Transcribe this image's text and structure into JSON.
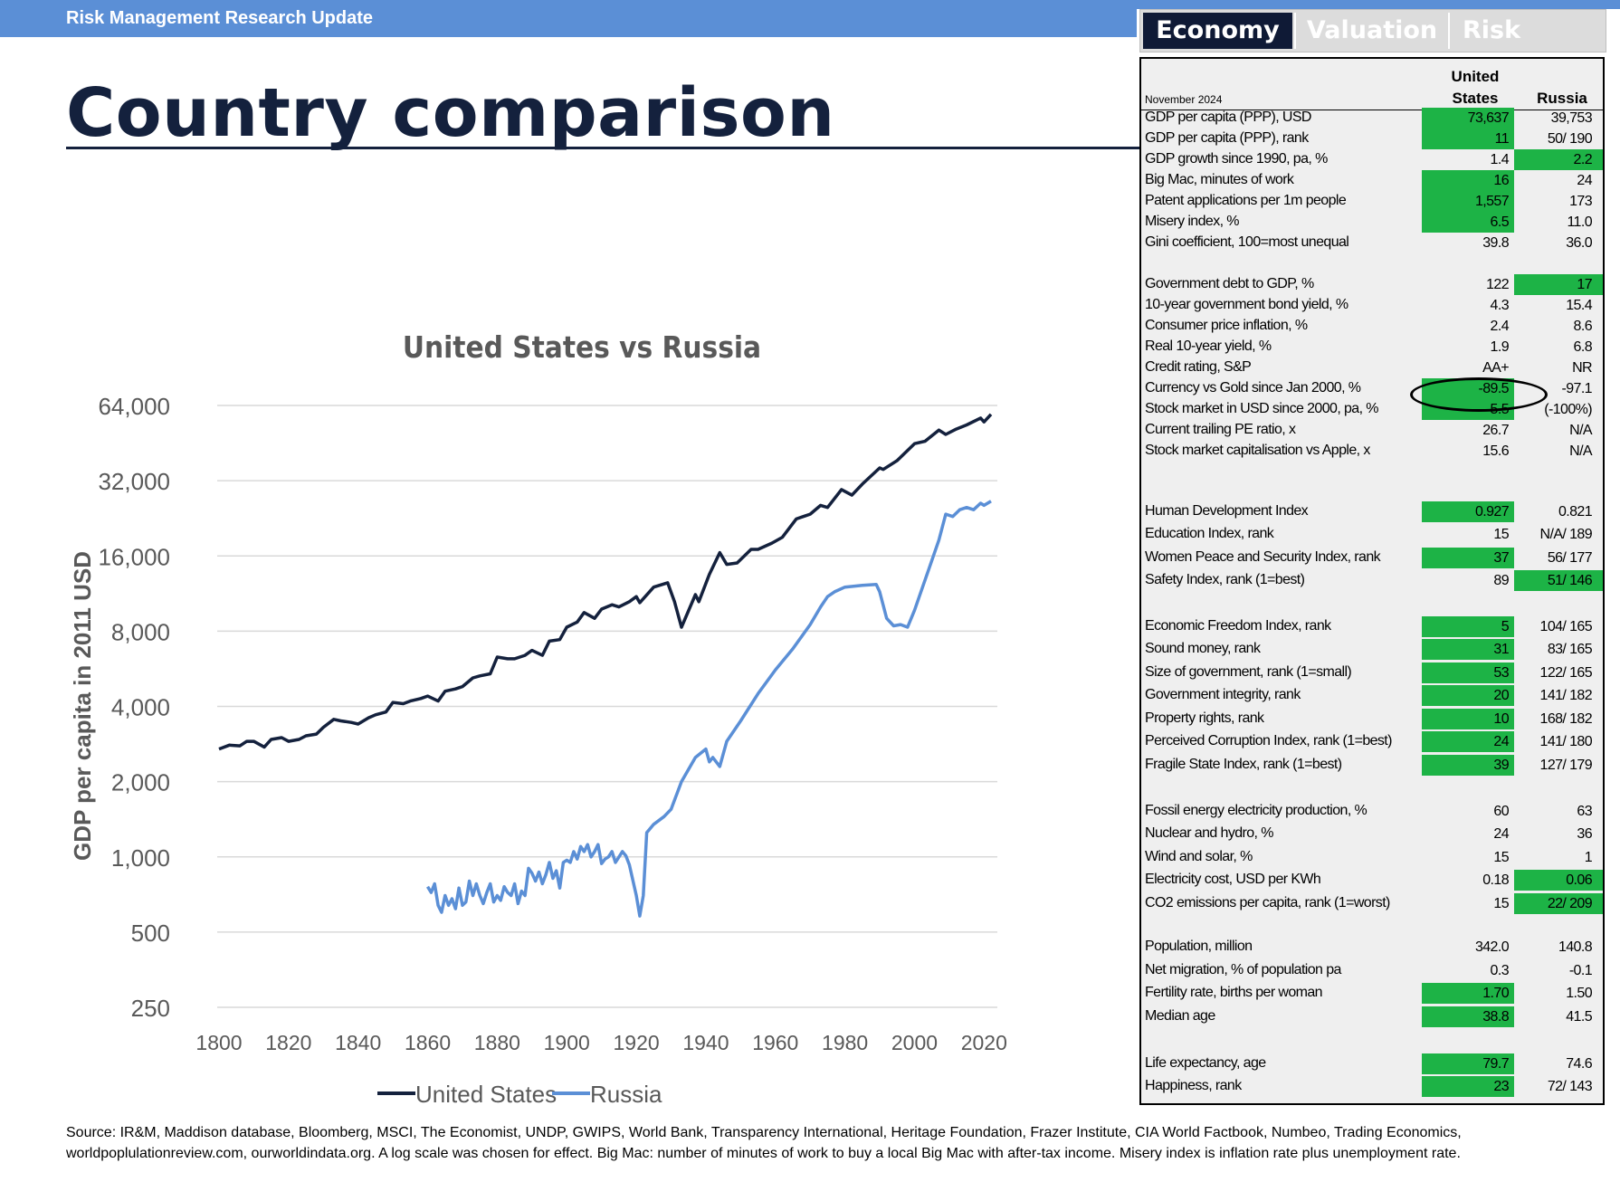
{
  "header": {
    "banner": "Risk Management Research Update",
    "title": "Country comparison"
  },
  "tabs": [
    {
      "label": "Economy",
      "active": true
    },
    {
      "label": "Valuation",
      "active": false
    },
    {
      "label": "Risk",
      "active": false
    }
  ],
  "table": {
    "date": "November 2024",
    "columns": {
      "us_line1": "United",
      "us_line2": "States",
      "ru": "Russia"
    },
    "rows": [
      {
        "label": "GDP per capita (PPP), USD",
        "us": "73,637",
        "ru": "39,753",
        "hl": "us",
        "top": 54
      },
      {
        "label": "GDP per capita (PPP), rank",
        "us": "11",
        "ru": "50/ 190",
        "hl": "us",
        "top": 77
      },
      {
        "label": "GDP growth since 1990, pa, %",
        "us": "1.4",
        "ru": "2.2",
        "hl": "ru",
        "top": 100
      },
      {
        "label": "Big Mac, minutes of work",
        "us": "16",
        "ru": "24",
        "hl": "us",
        "top": 123
      },
      {
        "label": "Patent applications per 1m people",
        "us": "1,557",
        "ru": "173",
        "hl": "us",
        "top": 146
      },
      {
        "label": "Misery index, %",
        "us": "6.5",
        "ru": "11.0",
        "hl": "us",
        "top": 169
      },
      {
        "label": "Gini coefficient, 100=most unequal",
        "us": "39.8",
        "ru": "36.0",
        "hl": "",
        "top": 192
      },
      {
        "label": "Government debt to GDP, %",
        "us": "122",
        "ru": "17",
        "hl": "ru",
        "top": 238
      },
      {
        "label": "10-year government bond yield, %",
        "us": "4.3",
        "ru": "15.4",
        "hl": "",
        "top": 261
      },
      {
        "label": "Consumer price inflation, %",
        "us": "2.4",
        "ru": "8.6",
        "hl": "",
        "top": 284
      },
      {
        "label": "Real 10-year yield, %",
        "us": "1.9",
        "ru": "6.8",
        "hl": "",
        "top": 307
      },
      {
        "label": "Credit rating, S&P",
        "us": "AA+",
        "ru": "NR",
        "hl": "",
        "top": 330
      },
      {
        "label": "Currency vs Gold since Jan 2000, %",
        "us": "-89.5",
        "ru": "-97.1",
        "hl": "us",
        "top": 353
      },
      {
        "label": "Stock market in USD since 2000, pa, %",
        "us": "5.5",
        "ru": "(-100%)",
        "hl": "us",
        "top": 376
      },
      {
        "label": "Current trailing PE ratio, x",
        "us": "26.7",
        "ru": "N/A",
        "hl": "",
        "top": 399
      },
      {
        "label": "Stock market capitalisation vs Apple, x",
        "us": "15.6",
        "ru": "N/A",
        "hl": "",
        "top": 422
      },
      {
        "label": "Human Development Index",
        "us": "0.927",
        "ru": "0.821",
        "hl": "us",
        "top": 489
      },
      {
        "label": "Education Index, rank",
        "us": "15",
        "ru": "N/A/ 189",
        "hl": "",
        "top": 514
      },
      {
        "label": "Women Peace and Security Index, rank",
        "us": "37",
        "ru": "56/ 177",
        "hl": "us",
        "top": 540
      },
      {
        "label": "Safety Index, rank (1=best)",
        "us": "89",
        "ru": "51/ 146",
        "hl": "ru",
        "top": 565
      },
      {
        "label": "Economic Freedom Index, rank",
        "us": "5",
        "ru": "104/ 165",
        "hl": "us",
        "top": 616
      },
      {
        "label": "Sound money, rank",
        "us": "31",
        "ru": "83/ 165",
        "hl": "us",
        "top": 641
      },
      {
        "label": "Size of government, rank (1=small)",
        "us": "53",
        "ru": "122/ 165",
        "hl": "us",
        "top": 667
      },
      {
        "label": "Government integrity, rank",
        "us": "20",
        "ru": "141/ 182",
        "hl": "us",
        "top": 692
      },
      {
        "label": "Property rights, rank",
        "us": "10",
        "ru": "168/ 182",
        "hl": "us",
        "top": 718
      },
      {
        "label": "Perceived Corruption Index, rank (1=best)",
        "us": "24",
        "ru": "141/ 180",
        "hl": "us",
        "top": 743
      },
      {
        "label": "Fragile State Index, rank (1=best)",
        "us": "39",
        "ru": "127/ 179",
        "hl": "us",
        "top": 769
      },
      {
        "label": "Fossil energy electricity production, %",
        "us": "60",
        "ru": "63",
        "hl": "",
        "top": 820
      },
      {
        "label": "Nuclear and hydro, %",
        "us": "24",
        "ru": "36",
        "hl": "",
        "top": 845
      },
      {
        "label": "Wind and solar, %",
        "us": "15",
        "ru": "1",
        "hl": "",
        "top": 871
      },
      {
        "label": "Electricity cost, USD per KWh",
        "us": "0.18",
        "ru": "0.06",
        "hl": "ru",
        "top": 896
      },
      {
        "label": "CO2 emissions per capita, rank (1=worst)",
        "us": "15",
        "ru": "22/ 209",
        "hl": "ru",
        "top": 922
      },
      {
        "label": "Population, million",
        "us": "342.0",
        "ru": "140.8",
        "hl": "",
        "top": 970
      },
      {
        "label": "Net migration, % of population pa",
        "us": "0.3",
        "ru": "-0.1",
        "hl": "",
        "top": 996
      },
      {
        "label": "Fertility rate, births per woman",
        "us": "1.70",
        "ru": "1.50",
        "hl": "us",
        "top": 1021
      },
      {
        "label": "Median age",
        "us": "38.8",
        "ru": "41.5",
        "hl": "us",
        "top": 1047
      },
      {
        "label": "Life expectancy, age",
        "us": "79.7",
        "ru": "74.6",
        "hl": "us",
        "top": 1099
      },
      {
        "label": "Happiness, rank",
        "us": "23",
        "ru": "72/ 143",
        "hl": "us",
        "top": 1124
      }
    ]
  },
  "colors": {
    "us_line": "#14213d",
    "ru_line": "#5b8fd6",
    "highlight": "#1db346"
  },
  "chart_data": {
    "type": "line",
    "title": "United States vs Russia",
    "ylabel": "GDP per capita in 2011 USD",
    "xlabel": "",
    "y_scale": "log2",
    "ylim": [
      250,
      64000
    ],
    "xlim": [
      1800,
      2022
    ],
    "x_ticks": [
      1800,
      1820,
      1840,
      1860,
      1880,
      1900,
      1920,
      1940,
      1960,
      1980,
      2000,
      2020
    ],
    "y_ticks": [
      250,
      500,
      1000,
      2000,
      4000,
      8000,
      16000,
      32000,
      64000
    ],
    "y_tick_labels": [
      "250",
      "500",
      "1,000",
      "2,000",
      "4,000",
      "8,000",
      "16,000",
      "32,000",
      "64,000"
    ],
    "legend_position": "bottom",
    "grid": true,
    "series": [
      {
        "name": "United States",
        "x": [
          1800,
          1803,
          1806,
          1808,
          1810,
          1813,
          1815,
          1818,
          1820,
          1823,
          1825,
          1828,
          1830,
          1833,
          1835,
          1838,
          1840,
          1843,
          1845,
          1848,
          1850,
          1853,
          1855,
          1858,
          1860,
          1863,
          1865,
          1868,
          1870,
          1873,
          1875,
          1878,
          1880,
          1883,
          1885,
          1888,
          1890,
          1893,
          1895,
          1898,
          1900,
          1903,
          1905,
          1908,
          1910,
          1913,
          1915,
          1918,
          1920,
          1921,
          1925,
          1929,
          1931,
          1933,
          1937,
          1938,
          1941,
          1944,
          1946,
          1949,
          1953,
          1955,
          1959,
          1962,
          1966,
          1970,
          1973,
          1975,
          1979,
          1982,
          1985,
          1990,
          1991,
          1995,
          2000,
          2003,
          2007,
          2009,
          2012,
          2015,
          2019,
          2020,
          2022
        ],
        "values": [
          2700,
          2800,
          2780,
          2900,
          2900,
          2750,
          2950,
          3000,
          2900,
          2950,
          3050,
          3100,
          3300,
          3550,
          3500,
          3450,
          3400,
          3600,
          3700,
          3800,
          4150,
          4100,
          4200,
          4300,
          4400,
          4200,
          4600,
          4700,
          4800,
          5200,
          5300,
          5400,
          6300,
          6200,
          6200,
          6400,
          6700,
          6400,
          7300,
          7400,
          8300,
          8700,
          9500,
          9000,
          9800,
          10200,
          10000,
          10500,
          11000,
          10400,
          12000,
          12500,
          10500,
          8300,
          11200,
          10500,
          13500,
          16500,
          14800,
          15000,
          17000,
          17000,
          18000,
          19000,
          22500,
          23500,
          25500,
          25000,
          29500,
          28000,
          31000,
          36000,
          35500,
          38500,
          45000,
          46000,
          51000,
          49000,
          51500,
          53500,
          57000,
          55000,
          59000
        ]
      },
      {
        "name": "Russia",
        "x": [
          1860,
          1861,
          1862,
          1863,
          1864,
          1865,
          1866,
          1867,
          1868,
          1869,
          1870,
          1871,
          1872,
          1873,
          1874,
          1875,
          1876,
          1877,
          1878,
          1879,
          1880,
          1881,
          1882,
          1883,
          1884,
          1885,
          1886,
          1887,
          1888,
          1889,
          1890,
          1891,
          1892,
          1893,
          1894,
          1895,
          1896,
          1897,
          1898,
          1899,
          1900,
          1901,
          1902,
          1903,
          1904,
          1905,
          1906,
          1907,
          1908,
          1909,
          1910,
          1911,
          1912,
          1913,
          1914,
          1916,
          1917,
          1918,
          1920,
          1921,
          1922,
          1923,
          1925,
          1928,
          1930,
          1933,
          1937,
          1940,
          1941,
          1942,
          1944,
          1946,
          1950,
          1955,
          1960,
          1965,
          1970,
          1973,
          1975,
          1977,
          1980,
          1985,
          1989,
          1990,
          1992,
          1994,
          1996,
          1998,
          2000,
          2004,
          2007,
          2009,
          2011,
          2013,
          2015,
          2017,
          2019,
          2020,
          2022
        ],
        "values": [
          760,
          720,
          780,
          640,
          600,
          700,
          640,
          680,
          620,
          750,
          640,
          660,
          800,
          700,
          780,
          700,
          650,
          720,
          780,
          660,
          700,
          670,
          760,
          720,
          700,
          780,
          650,
          730,
          700,
          900,
          860,
          800,
          870,
          780,
          850,
          950,
          820,
          880,
          750,
          950,
          970,
          950,
          1050,
          980,
          1100,
          1050,
          1120,
          1000,
          1050,
          1120,
          940,
          980,
          1000,
          1050,
          950,
          1050,
          1010,
          930,
          700,
          580,
          700,
          1250,
          1350,
          1450,
          1550,
          2000,
          2500,
          2700,
          2400,
          2500,
          2300,
          2900,
          3500,
          4500,
          5600,
          6800,
          8500,
          10000,
          11000,
          11500,
          12000,
          12200,
          12300,
          11500,
          9000,
          8400,
          8500,
          8300,
          9700,
          14000,
          18500,
          23500,
          23000,
          24500,
          25000,
          24500,
          26000,
          25500,
          26500
        ]
      }
    ]
  },
  "footer": {
    "line1": "Source: IR&M, Maddison database, Bloomberg, MSCI, The Economist, UNDP, GWIPS, World Bank, Transparency International, Heritage Foundation, Frazer Institute, CIA World Factbook, Numbeo, Trading Economics,",
    "line2": "worldpoplulationreview.com, ourworldindata.org. A log scale was chosen for effect. Big Mac: number of minutes of work to buy a local Big Mac with after-tax income. Misery index is inflation rate plus unemployment rate."
  }
}
